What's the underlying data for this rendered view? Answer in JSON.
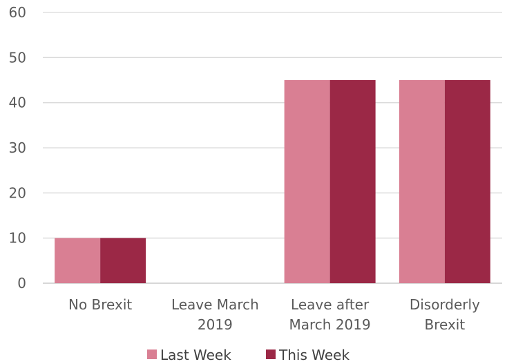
{
  "chart_data": {
    "type": "bar",
    "categories": [
      [
        "No Brexit"
      ],
      [
        "Leave March",
        "2019"
      ],
      [
        "Leave after",
        "March 2019"
      ],
      [
        "Disorderly",
        "Brexit"
      ]
    ],
    "series": [
      {
        "name": "Last Week",
        "values": [
          10,
          0,
          45,
          45
        ],
        "color": "#d97f93"
      },
      {
        "name": "This Week",
        "values": [
          10,
          0,
          45,
          45
        ],
        "color": "#9b2846"
      }
    ],
    "yticks": [
      0,
      10,
      20,
      30,
      40,
      50,
      60
    ],
    "ylim": [
      0,
      60
    ],
    "grid": true,
    "legend_position": "bottom"
  }
}
